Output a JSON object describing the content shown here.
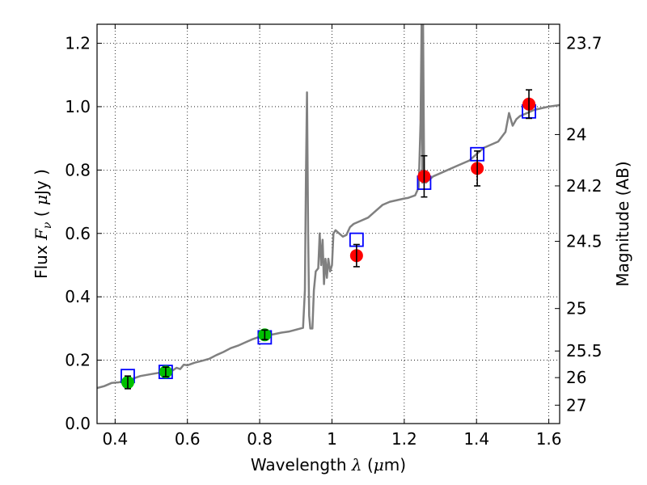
{
  "chart_data": {
    "type": "line",
    "xlabel": {
      "prefix": "Wavelength ",
      "symbol": "λ",
      "unit_open": " (",
      "unit_mu": "μ",
      "unit_close": "m)"
    },
    "ylabel": {
      "prefix": "Flux ",
      "symbol": "F",
      "subscript": "ν",
      "unit_open": " ( ",
      "unit_mu": "μ",
      "unit_close": "Jy )"
    },
    "ylabel_right": "Magnitude (AB)",
    "xlim": [
      0.35,
      1.63
    ],
    "ylim": [
      0.0,
      1.26
    ],
    "grid": true,
    "x_ticks": [
      {
        "value": 0.4,
        "label": "0.4"
      },
      {
        "value": 0.6,
        "label": "0.6"
      },
      {
        "value": 0.8,
        "label": "0.8"
      },
      {
        "value": 1.0,
        "label": "1"
      },
      {
        "value": 1.2,
        "label": "1.2"
      },
      {
        "value": 1.4,
        "label": "1.4"
      },
      {
        "value": 1.6,
        "label": "1.6"
      }
    ],
    "y_ticks": [
      {
        "value": 0.0,
        "label": "0.0"
      },
      {
        "value": 0.2,
        "label": "0.2"
      },
      {
        "value": 0.4,
        "label": "0.4"
      },
      {
        "value": 0.6,
        "label": "0.6"
      },
      {
        "value": 0.8,
        "label": "0.8"
      },
      {
        "value": 1.0,
        "label": "1.0"
      },
      {
        "value": 1.2,
        "label": "1.2"
      }
    ],
    "right_ticks": [
      {
        "flux": 1.2,
        "label": "23.7"
      },
      {
        "flux": 0.912,
        "label": "24"
      },
      {
        "flux": 0.75,
        "label": "24.2"
      },
      {
        "flux": 0.575,
        "label": "24.5"
      },
      {
        "flux": 0.363,
        "label": "25"
      },
      {
        "flux": 0.229,
        "label": "25.5"
      },
      {
        "flux": 0.145,
        "label": "26"
      },
      {
        "flux": 0.058,
        "label": "27"
      }
    ],
    "series": [
      {
        "kind": "model_spectrum",
        "color": "#808080",
        "points": [
          [
            0.35,
            0.112
          ],
          [
            0.37,
            0.118
          ],
          [
            0.39,
            0.128
          ],
          [
            0.41,
            0.13
          ],
          [
            0.43,
            0.136
          ],
          [
            0.45,
            0.142
          ],
          [
            0.47,
            0.15
          ],
          [
            0.5,
            0.156
          ],
          [
            0.52,
            0.16
          ],
          [
            0.54,
            0.163
          ],
          [
            0.56,
            0.168
          ],
          [
            0.57,
            0.176
          ],
          [
            0.58,
            0.172
          ],
          [
            0.59,
            0.186
          ],
          [
            0.6,
            0.184
          ],
          [
            0.62,
            0.192
          ],
          [
            0.64,
            0.198
          ],
          [
            0.66,
            0.204
          ],
          [
            0.68,
            0.216
          ],
          [
            0.7,
            0.226
          ],
          [
            0.72,
            0.238
          ],
          [
            0.74,
            0.246
          ],
          [
            0.76,
            0.256
          ],
          [
            0.78,
            0.266
          ],
          [
            0.8,
            0.274
          ],
          [
            0.82,
            0.278
          ],
          [
            0.84,
            0.282
          ],
          [
            0.86,
            0.287
          ],
          [
            0.88,
            0.29
          ],
          [
            0.9,
            0.296
          ],
          [
            0.92,
            0.302
          ],
          [
            0.925,
            0.42
          ],
          [
            0.928,
            0.78
          ],
          [
            0.931,
            1.045
          ],
          [
            0.934,
            0.6
          ],
          [
            0.937,
            0.34
          ],
          [
            0.94,
            0.3
          ],
          [
            0.946,
            0.3
          ],
          [
            0.95,
            0.42
          ],
          [
            0.955,
            0.48
          ],
          [
            0.962,
            0.49
          ],
          [
            0.966,
            0.6
          ],
          [
            0.97,
            0.5
          ],
          [
            0.974,
            0.58
          ],
          [
            0.978,
            0.44
          ],
          [
            0.982,
            0.52
          ],
          [
            0.986,
            0.46
          ],
          [
            0.99,
            0.52
          ],
          [
            0.995,
            0.48
          ],
          [
            1.0,
            0.5
          ],
          [
            1.004,
            0.6
          ],
          [
            1.01,
            0.61
          ],
          [
            1.02,
            0.6
          ],
          [
            1.03,
            0.59
          ],
          [
            1.04,
            0.595
          ],
          [
            1.05,
            0.62
          ],
          [
            1.06,
            0.63
          ],
          [
            1.08,
            0.64
          ],
          [
            1.1,
            0.65
          ],
          [
            1.12,
            0.67
          ],
          [
            1.14,
            0.69
          ],
          [
            1.16,
            0.7
          ],
          [
            1.18,
            0.705
          ],
          [
            1.2,
            0.71
          ],
          [
            1.21,
            0.712
          ],
          [
            1.22,
            0.716
          ],
          [
            1.23,
            0.72
          ],
          [
            1.24,
            0.745
          ],
          [
            1.245,
            0.95
          ],
          [
            1.248,
            1.26
          ],
          [
            1.25,
            0.76
          ],
          [
            1.252,
            1.26
          ],
          [
            1.255,
            0.8
          ],
          [
            1.26,
            0.76
          ],
          [
            1.27,
            0.77
          ],
          [
            1.28,
            0.78
          ],
          [
            1.3,
            0.79
          ],
          [
            1.32,
            0.8
          ],
          [
            1.34,
            0.81
          ],
          [
            1.36,
            0.82
          ],
          [
            1.38,
            0.83
          ],
          [
            1.4,
            0.85
          ],
          [
            1.42,
            0.87
          ],
          [
            1.44,
            0.88
          ],
          [
            1.46,
            0.89
          ],
          [
            1.48,
            0.92
          ],
          [
            1.49,
            0.98
          ],
          [
            1.5,
            0.94
          ],
          [
            1.51,
            0.96
          ],
          [
            1.52,
            0.97
          ],
          [
            1.54,
            0.98
          ],
          [
            1.56,
            0.99
          ],
          [
            1.58,
            0.995
          ],
          [
            1.6,
            1.0
          ],
          [
            1.63,
            1.005
          ]
        ]
      },
      {
        "kind": "model_photometry_squares",
        "color": "#0000ff",
        "points": [
          [
            0.435,
            0.15
          ],
          [
            0.54,
            0.163
          ],
          [
            0.814,
            0.272
          ],
          [
            1.068,
            0.58
          ],
          [
            1.255,
            0.76
          ],
          [
            1.402,
            0.85
          ],
          [
            1.545,
            0.985
          ]
        ]
      },
      {
        "kind": "observed_optical",
        "color": "#00c000",
        "points": [
          {
            "x": 0.435,
            "y": 0.13,
            "err": 0.02
          },
          {
            "x": 0.54,
            "y": 0.163,
            "err": 0.015
          },
          {
            "x": 0.814,
            "y": 0.28,
            "err": 0.015
          }
        ]
      },
      {
        "kind": "observed_nir",
        "color": "#ff0000",
        "points": [
          {
            "x": 1.068,
            "y": 0.53,
            "err": 0.035
          },
          {
            "x": 1.255,
            "y": 0.78,
            "err": 0.065
          },
          {
            "x": 1.402,
            "y": 0.805,
            "err": 0.055
          },
          {
            "x": 1.545,
            "y": 1.008,
            "err": 0.045
          }
        ]
      }
    ]
  }
}
